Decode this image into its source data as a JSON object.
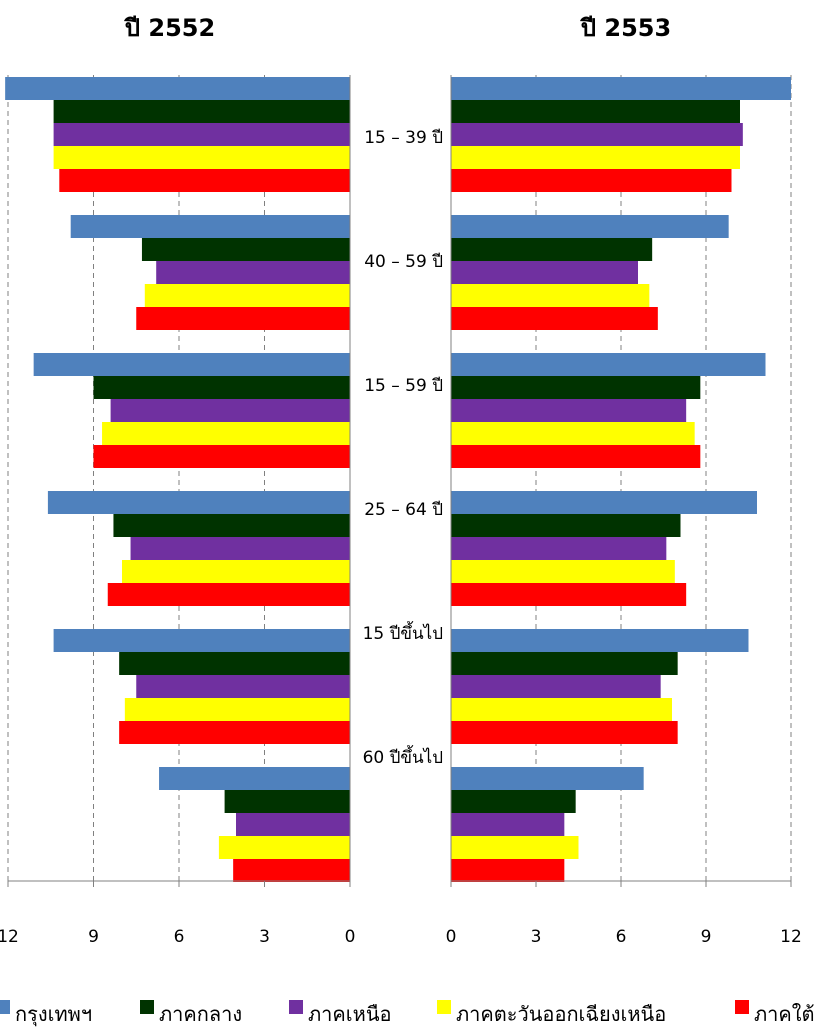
{
  "chart_data": {
    "type": "bar",
    "orientation": "horizontal",
    "categories": [
      "15 – 39 ปี",
      "40 – 59 ปี",
      "15 – 59 ปี",
      "25 – 64 ปี",
      "15 ปีขึ้นไป",
      "60 ปีขึ้นไป"
    ],
    "series_names": [
      "กรุงเทพฯ",
      "ภาคกลาง",
      "ภาคเหนือ",
      "ภาคตะวันออกเฉียงเหนือ",
      "ภาคใต้"
    ],
    "series_colors": [
      "#4f81bd",
      "#003300",
      "#7030a0",
      "#ffff00",
      "#ff0000"
    ],
    "grid": true,
    "legend_position": "bottom",
    "panels": [
      {
        "title": "ปี 2552",
        "reversed_axis": true,
        "xlim": [
          0,
          12
        ],
        "ticks": [
          "12",
          "9",
          "6",
          "3",
          "0"
        ],
        "series": [
          {
            "name": "กรุงเทพฯ",
            "values": [
              12.1,
              9.8,
              11.1,
              10.6,
              10.4,
              6.7
            ]
          },
          {
            "name": "ภาคกลาง",
            "values": [
              10.4,
              7.3,
              9.0,
              8.3,
              8.1,
              4.4
            ]
          },
          {
            "name": "ภาคเหนือ",
            "values": [
              10.4,
              6.8,
              8.4,
              7.7,
              7.5,
              4.0
            ]
          },
          {
            "name": "ภาคตะวันออกเฉียงเหนือ",
            "values": [
              10.4,
              7.2,
              8.7,
              8.0,
              7.9,
              4.6
            ]
          },
          {
            "name": "ภาคใต้",
            "values": [
              10.2,
              7.5,
              9.0,
              8.5,
              8.1,
              4.1
            ]
          }
        ]
      },
      {
        "title": "ปี 2553",
        "reversed_axis": false,
        "xlim": [
          0,
          12
        ],
        "ticks": [
          "0",
          "3",
          "6",
          "9",
          "12"
        ],
        "series": [
          {
            "name": "กรุงเทพฯ",
            "values": [
              12.0,
              9.8,
              11.1,
              10.8,
              10.5,
              6.8
            ]
          },
          {
            "name": "ภาคกลาง",
            "values": [
              10.2,
              7.1,
              8.8,
              8.1,
              8.0,
              4.4
            ]
          },
          {
            "name": "ภาคเหนือ",
            "values": [
              10.3,
              6.6,
              8.3,
              7.6,
              7.4,
              4.0
            ]
          },
          {
            "name": "ภาคตะวันออกเฉียงเหนือ",
            "values": [
              10.2,
              7.0,
              8.6,
              7.9,
              7.8,
              4.5
            ]
          },
          {
            "name": "ภาคใต้",
            "values": [
              9.9,
              7.3,
              8.8,
              8.3,
              8.0,
              4.0
            ]
          }
        ]
      }
    ]
  }
}
